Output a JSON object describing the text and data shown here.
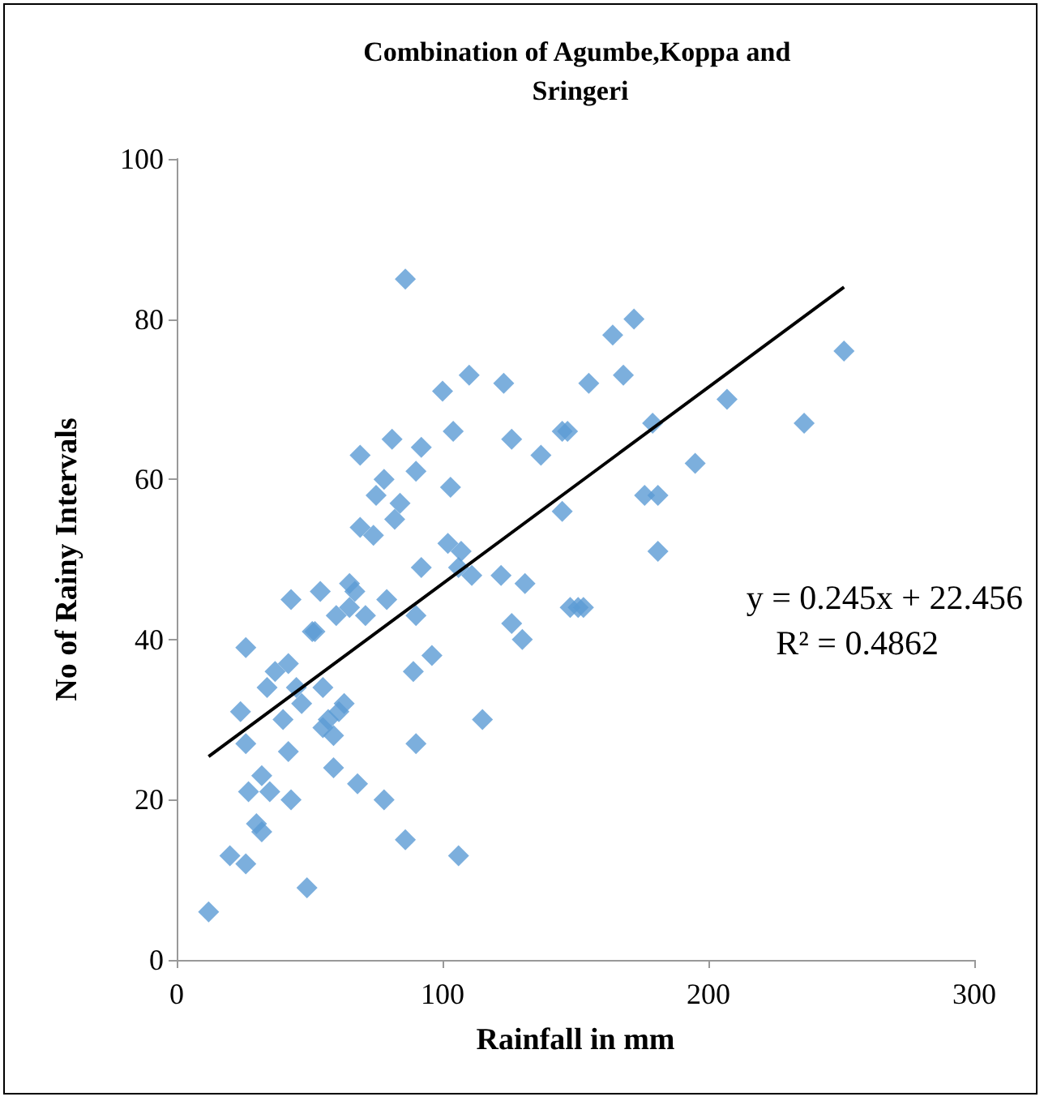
{
  "chart_data": {
    "type": "scatter",
    "title": "Combination of Agumbe,Koppa and Sringeri",
    "xlabel": "Rainfall in mm",
    "ylabel": "No of Rainy Intervals",
    "xlim": [
      0,
      300
    ],
    "xticks": [
      0,
      100,
      200,
      300
    ],
    "ylim": [
      0,
      100
    ],
    "yticks": [
      0,
      20,
      40,
      60,
      80,
      100
    ],
    "grid": false,
    "marker": "diamond",
    "annotations": [
      "y = 0.245x + 22.456",
      "R² = 0.4862"
    ],
    "series": [
      {
        "color": "#5b9bd5",
        "x": [
          12,
          20,
          26,
          30,
          32,
          27,
          35,
          43,
          32,
          26,
          42,
          26,
          24,
          40,
          55,
          59,
          61,
          47,
          37,
          34,
          45,
          55,
          42,
          51,
          89,
          90,
          96,
          59,
          68,
          78,
          49,
          86,
          106,
          115,
          86,
          100,
          110,
          123,
          104,
          126,
          137,
          145,
          69,
          81,
          92,
          90,
          78,
          103,
          75,
          84,
          82,
          69,
          74,
          102,
          107,
          92,
          106,
          111,
          122,
          131,
          145,
          43,
          54,
          65,
          67,
          79,
          65,
          71,
          90,
          52,
          126,
          130,
          148,
          172,
          164,
          155,
          168,
          251,
          207,
          236,
          147,
          179,
          195,
          176,
          181,
          181,
          153,
          151,
          63,
          60,
          57
        ],
        "values": [
          6,
          13,
          12,
          17,
          16,
          21,
          21,
          20,
          23,
          27,
          26,
          39,
          31,
          30,
          34,
          28,
          31,
          32,
          36,
          34,
          34,
          29,
          37,
          41,
          36,
          27,
          38,
          24,
          22,
          20,
          9,
          15,
          13,
          30,
          85,
          71,
          73,
          72,
          66,
          65,
          63,
          66,
          63,
          65,
          64,
          61,
          60,
          59,
          58,
          57,
          55,
          54,
          53,
          52,
          51,
          49,
          49,
          48,
          48,
          47,
          56,
          45,
          46,
          47,
          46,
          45,
          44,
          43,
          43,
          41,
          42,
          40,
          44,
          80,
          78,
          72,
          73,
          76,
          70,
          67,
          66,
          67,
          62,
          58,
          58,
          51,
          44,
          44,
          32,
          43,
          30
        ]
      },
      {
        "type": "line",
        "color": "#000000",
        "marker": "none",
        "x": [
          12,
          251
        ],
        "values": [
          25.4,
          84.0
        ]
      }
    ]
  }
}
